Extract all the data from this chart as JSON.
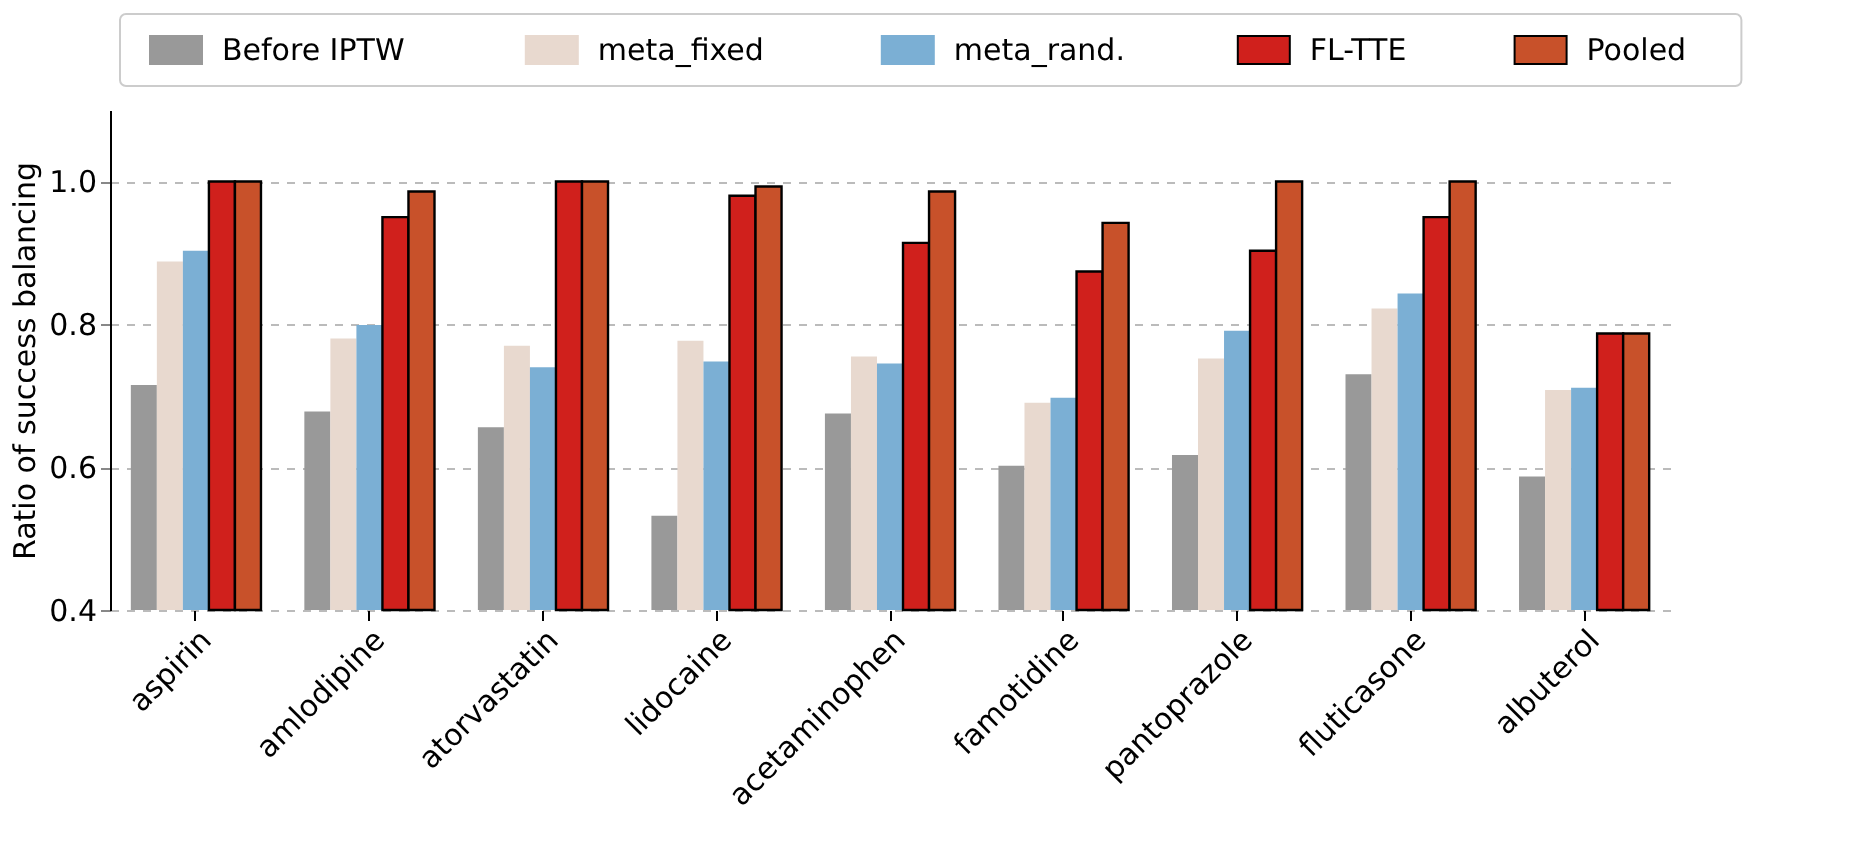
{
  "chart_data": {
    "type": "bar",
    "ylabel": "Ratio of success balancing",
    "categories": [
      "aspirin",
      "amlodipine",
      "atorvastatin",
      "lidocaine",
      "acetaminophen",
      "famotidine",
      "pantoprazole",
      "fluticasone",
      "albuterol"
    ],
    "series": [
      {
        "name": "Before IPTW",
        "color": "#999999",
        "values": [
          0.715,
          0.678,
          0.656,
          0.532,
          0.675,
          0.602,
          0.617,
          0.73,
          0.587
        ]
      },
      {
        "name": "meta_fixed",
        "color": "#e8d9cf",
        "values": [
          0.888,
          0.78,
          0.77,
          0.777,
          0.755,
          0.69,
          0.752,
          0.822,
          0.708
        ]
      },
      {
        "name": "meta_rand.",
        "color": "#7bafd4",
        "values": [
          0.903,
          0.799,
          0.74,
          0.748,
          0.745,
          0.697,
          0.791,
          0.843,
          0.711
        ]
      },
      {
        "name": "FL-TTE",
        "color": "#d0201c",
        "values": [
          1.0,
          0.95,
          1.0,
          0.98,
          0.914,
          0.874,
          0.903,
          0.95,
          0.787
        ]
      },
      {
        "name": "Pooled",
        "color": "#c8512a",
        "values": [
          1.0,
          0.986,
          1.0,
          0.993,
          0.986,
          0.942,
          1.0,
          1.0,
          0.787
        ]
      }
    ],
    "ylim": [
      0.4,
      1.1
    ],
    "yticks": [
      {
        "value": 0.4,
        "label": "0.4"
      },
      {
        "value": 0.6,
        "label": "0.6"
      },
      {
        "value": 0.8,
        "label": "0.8"
      },
      {
        "value": 1.0,
        "label": "1.0"
      }
    ],
    "grid": "y",
    "legend": "top"
  }
}
